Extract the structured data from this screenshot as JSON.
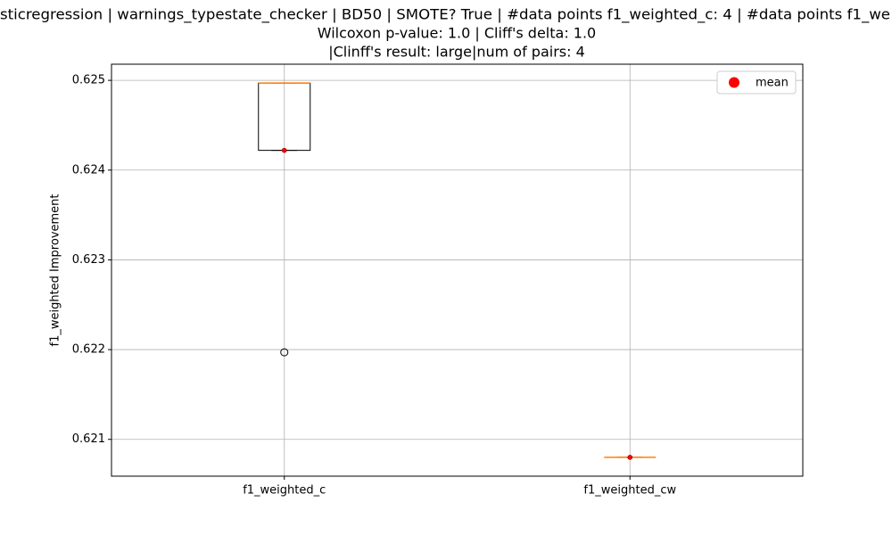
{
  "chart_data": {
    "type": "box",
    "title": [
      "sticregression | warnings_typestate_checker | BD50 | SMOTE? True | #data points f1_weighted_c: 4 | #data points f1_we",
      "Wilcoxon p-value: 1.0 | Cliff's delta: 1.0",
      "|Clinff's result: large|num of pairs: 4"
    ],
    "y_label": "f1_weighted Improvement",
    "categories": [
      "f1_weighted_c",
      "f1_weighted_cw"
    ],
    "boxes": [
      {
        "q1": 0.62422,
        "median": 0.62497,
        "q3": 0.62497,
        "whisker_low": 0.62422,
        "whisker_high": 0.62497,
        "outliers": [
          0.62197
        ],
        "mean": 0.62422
      },
      {
        "q1": 0.6208,
        "median": 0.6208,
        "q3": 0.6208,
        "whisker_low": 0.6208,
        "whisker_high": 0.6208,
        "outliers": [],
        "mean": 0.6208
      }
    ],
    "mean_color": "#ff0000",
    "median_color": "#ff7f0e",
    "legend": {
      "label": "mean",
      "position": "upper right"
    },
    "ylim": [
      0.62059,
      0.62518
    ],
    "yticks": [
      0.621,
      0.622,
      0.623,
      0.624,
      0.625
    ],
    "grid": true
  }
}
